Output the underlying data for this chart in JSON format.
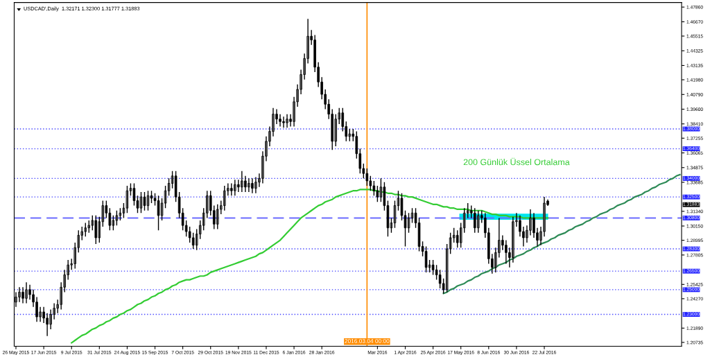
{
  "chart_data": {
    "type": "candlestick",
    "title": "USDCAD',Daily  1.32171 1.32300 1.31777 1.31883",
    "categories": [
      "26 May 2015",
      null,
      null,
      null,
      null,
      null,
      null,
      null,
      "17 Jun 2015",
      null,
      null,
      null,
      null,
      null,
      null,
      null,
      "9 Jul 2015",
      null,
      null,
      null,
      null,
      null,
      null,
      null,
      "31 Jul 2015",
      null,
      null,
      null,
      null,
      null,
      null,
      null,
      "24 Aug 2015",
      null,
      null,
      null,
      null,
      null,
      null,
      null,
      "15 Sep 2015",
      null,
      null,
      null,
      null,
      null,
      null,
      null,
      "7 Oct 2015",
      null,
      null,
      null,
      null,
      null,
      null,
      null,
      "29 Oct 2015",
      null,
      null,
      null,
      null,
      null,
      null,
      null,
      "19 Nov 2015",
      null,
      null,
      null,
      null,
      null,
      null,
      null,
      "11 Dec 2015",
      null,
      null,
      null,
      null,
      null,
      null,
      null,
      "6 Jan 2016",
      null,
      null,
      null,
      null,
      null,
      null,
      null,
      "28 Jan 2016",
      null,
      null,
      null,
      null,
      null,
      null,
      null,
      null,
      null,
      null,
      null,
      null,
      "2016.03.04 00:00",
      null,
      null,
      "Mar 2016",
      null,
      null,
      null,
      null,
      null,
      null,
      null,
      "1 Apr 2016",
      null,
      null,
      null,
      null,
      null,
      null,
      null,
      "25 Apr 2016",
      null,
      null,
      null,
      null,
      null,
      null,
      null,
      "17 May 2016",
      null,
      null,
      null,
      null,
      null,
      null,
      null,
      "8 Jun 2016",
      null,
      null,
      null,
      null,
      null,
      null,
      null,
      "30 Jun 2016",
      null,
      null,
      null,
      null,
      null,
      null,
      null,
      "22 Jul 2016",
      null,
      null,
      null,
      null,
      null,
      null,
      null,
      null,
      null,
      null,
      null,
      null,
      null,
      null,
      null,
      null,
      null,
      null,
      null,
      null,
      null,
      null,
      null,
      null,
      null,
      null,
      null,
      null,
      null,
      null,
      null,
      null,
      null,
      null,
      null,
      null,
      null,
      null,
      null
    ],
    "ohlc": [
      [
        1.24,
        1.248,
        1.236,
        1.244
      ],
      [
        1.244,
        1.252,
        1.24,
        1.248
      ],
      [
        1.248,
        1.252,
        1.239,
        1.243
      ],
      [
        1.243,
        1.256,
        1.239,
        1.25
      ],
      [
        1.25,
        1.254,
        1.242,
        1.246
      ],
      [
        1.246,
        1.25,
        1.236,
        1.24
      ],
      [
        1.24,
        1.244,
        1.224,
        1.228
      ],
      [
        1.228,
        1.236,
        1.224,
        1.232
      ],
      [
        1.232,
        1.236,
        1.223,
        1.227
      ],
      [
        1.227,
        1.231,
        1.2125,
        1.222
      ],
      [
        1.222,
        1.234,
        1.218,
        1.23
      ],
      [
        1.23,
        1.239,
        1.226,
        1.235
      ],
      [
        1.235,
        1.242,
        1.231,
        1.238
      ],
      [
        1.238,
        1.256,
        1.234,
        1.252
      ],
      [
        1.252,
        1.266,
        1.248,
        1.262
      ],
      [
        1.262,
        1.274,
        1.258,
        1.27
      ],
      [
        1.27,
        1.275,
        1.266,
        1.271
      ],
      [
        1.271,
        1.288,
        1.267,
        1.284
      ],
      [
        1.284,
        1.298,
        1.28,
        1.294
      ],
      [
        1.294,
        1.301,
        1.29,
        1.297
      ],
      [
        1.297,
        1.304,
        1.293,
        1.3
      ],
      [
        1.3,
        1.306,
        1.296,
        1.302
      ],
      [
        1.302,
        1.31,
        1.298,
        1.306
      ],
      [
        1.306,
        1.31,
        1.287,
        1.292
      ],
      [
        1.292,
        1.309,
        1.288,
        1.305
      ],
      [
        1.305,
        1.322,
        1.301,
        1.318
      ],
      [
        1.318,
        1.322,
        1.308,
        1.312
      ],
      [
        1.312,
        1.316,
        1.298,
        1.302
      ],
      [
        1.302,
        1.31,
        1.298,
        1.306
      ],
      [
        1.306,
        1.314,
        1.302,
        1.31
      ],
      [
        1.31,
        1.316,
        1.306,
        1.312
      ],
      [
        1.312,
        1.32,
        1.308,
        1.316
      ],
      [
        1.316,
        1.334,
        1.312,
        1.33
      ],
      [
        1.33,
        1.336,
        1.326,
        1.332
      ],
      [
        1.332,
        1.336,
        1.318,
        1.322
      ],
      [
        1.322,
        1.326,
        1.312,
        1.316
      ],
      [
        1.316,
        1.329,
        1.312,
        1.325
      ],
      [
        1.325,
        1.329,
        1.314,
        1.318
      ],
      [
        1.318,
        1.33,
        1.314,
        1.326
      ],
      [
        1.326,
        1.33,
        1.32,
        1.324
      ],
      [
        1.324,
        1.328,
        1.318,
        1.322
      ],
      [
        1.322,
        1.326,
        1.298,
        1.31
      ],
      [
        1.31,
        1.324,
        1.306,
        1.32
      ],
      [
        1.32,
        1.334,
        1.316,
        1.33
      ],
      [
        1.33,
        1.34,
        1.326,
        1.336
      ],
      [
        1.336,
        1.346,
        1.332,
        1.342
      ],
      [
        1.342,
        1.346,
        1.321,
        1.325
      ],
      [
        1.325,
        1.329,
        1.308,
        1.312
      ],
      [
        1.312,
        1.316,
        1.298,
        1.302
      ],
      [
        1.302,
        1.306,
        1.293,
        1.297
      ],
      [
        1.297,
        1.301,
        1.288,
        1.292
      ],
      [
        1.292,
        1.296,
        1.283,
        1.286
      ],
      [
        1.286,
        1.299,
        1.282,
        1.295
      ],
      [
        1.295,
        1.306,
        1.291,
        1.302
      ],
      [
        1.302,
        1.316,
        1.298,
        1.312
      ],
      [
        1.312,
        1.33,
        1.308,
        1.326
      ],
      [
        1.326,
        1.33,
        1.31,
        1.314
      ],
      [
        1.314,
        1.318,
        1.299,
        1.303
      ],
      [
        1.303,
        1.319,
        1.299,
        1.315
      ],
      [
        1.315,
        1.322,
        1.311,
        1.318
      ],
      [
        1.318,
        1.334,
        1.314,
        1.33
      ],
      [
        1.33,
        1.336,
        1.326,
        1.332
      ],
      [
        1.332,
        1.336,
        1.326,
        1.33
      ],
      [
        1.33,
        1.339,
        1.326,
        1.335
      ],
      [
        1.335,
        1.339,
        1.329,
        1.333
      ],
      [
        1.333,
        1.346,
        1.329,
        1.338
      ],
      [
        1.338,
        1.342,
        1.329,
        1.333
      ],
      [
        1.333,
        1.34,
        1.329,
        1.336
      ],
      [
        1.336,
        1.34,
        1.328,
        1.332
      ],
      [
        1.332,
        1.341,
        1.328,
        1.337
      ],
      [
        1.337,
        1.344,
        1.333,
        1.34
      ],
      [
        1.34,
        1.362,
        1.336,
        1.358
      ],
      [
        1.358,
        1.374,
        1.354,
        1.37
      ],
      [
        1.37,
        1.382,
        1.366,
        1.378
      ],
      [
        1.378,
        1.397,
        1.374,
        1.392
      ],
      [
        1.392,
        1.396,
        1.384,
        1.388
      ],
      [
        1.388,
        1.392,
        1.382,
        1.386
      ],
      [
        1.386,
        1.39,
        1.381,
        1.385
      ],
      [
        1.385,
        1.392,
        1.381,
        1.388
      ],
      [
        1.388,
        1.392,
        1.382,
        1.386
      ],
      [
        1.386,
        1.406,
        1.382,
        1.402
      ],
      [
        1.402,
        1.416,
        1.398,
        1.412
      ],
      [
        1.412,
        1.428,
        1.408,
        1.424
      ],
      [
        1.424,
        1.441,
        1.42,
        1.437
      ],
      [
        1.437,
        1.469,
        1.433,
        1.455
      ],
      [
        1.455,
        1.46,
        1.448,
        1.452
      ],
      [
        1.452,
        1.456,
        1.426,
        1.43
      ],
      [
        1.43,
        1.434,
        1.414,
        1.418
      ],
      [
        1.418,
        1.422,
        1.404,
        1.408
      ],
      [
        1.408,
        1.412,
        1.396,
        1.4
      ],
      [
        1.4,
        1.404,
        1.388,
        1.392
      ],
      [
        1.392,
        1.396,
        1.363,
        1.37
      ],
      [
        1.37,
        1.392,
        1.366,
        1.388
      ],
      [
        1.388,
        1.397,
        1.384,
        1.393
      ],
      [
        1.393,
        1.397,
        1.378,
        1.382
      ],
      [
        1.382,
        1.386,
        1.37,
        1.374
      ],
      [
        1.374,
        1.38,
        1.37,
        1.376
      ],
      [
        1.376,
        1.38,
        1.37,
        1.374
      ],
      [
        1.374,
        1.378,
        1.356,
        1.36
      ],
      [
        1.36,
        1.364,
        1.344,
        1.348
      ],
      [
        1.348,
        1.352,
        1.34,
        1.344
      ],
      [
        1.344,
        1.348,
        1.334,
        1.338
      ],
      [
        1.338,
        1.342,
        1.33,
        1.334
      ],
      [
        1.334,
        1.338,
        1.326,
        1.33
      ],
      [
        1.33,
        1.334,
        1.321,
        1.325
      ],
      [
        1.325,
        1.34,
        1.321,
        1.333
      ],
      [
        1.333,
        1.337,
        1.314,
        1.318
      ],
      [
        1.318,
        1.322,
        1.293,
        1.3
      ],
      [
        1.3,
        1.308,
        1.296,
        1.304
      ],
      [
        1.304,
        1.322,
        1.3,
        1.318
      ],
      [
        1.318,
        1.33,
        1.314,
        1.324
      ],
      [
        1.324,
        1.328,
        1.306,
        1.31
      ],
      [
        1.31,
        1.314,
        1.285,
        1.3
      ],
      [
        1.3,
        1.312,
        1.296,
        1.308
      ],
      [
        1.308,
        1.316,
        1.304,
        1.312
      ],
      [
        1.312,
        1.316,
        1.3,
        1.304
      ],
      [
        1.304,
        1.308,
        1.281,
        1.285
      ],
      [
        1.285,
        1.289,
        1.277,
        1.281
      ],
      [
        1.281,
        1.285,
        1.264,
        1.268
      ],
      [
        1.268,
        1.274,
        1.264,
        1.27
      ],
      [
        1.27,
        1.274,
        1.262,
        1.266
      ],
      [
        1.266,
        1.27,
        1.258,
        1.262
      ],
      [
        1.262,
        1.266,
        1.251,
        1.255
      ],
      [
        1.255,
        1.259,
        1.2468,
        1.25
      ],
      [
        1.25,
        1.287,
        1.248,
        1.283
      ],
      [
        1.283,
        1.296,
        1.279,
        1.292
      ],
      [
        1.292,
        1.3,
        1.288,
        1.294
      ],
      [
        1.294,
        1.298,
        1.284,
        1.288
      ],
      [
        1.288,
        1.304,
        1.284,
        1.3
      ],
      [
        1.3,
        1.316,
        1.296,
        1.312
      ],
      [
        1.312,
        1.32,
        1.308,
        1.314
      ],
      [
        1.314,
        1.318,
        1.308,
        1.312
      ],
      [
        1.312,
        1.316,
        1.296,
        1.3
      ],
      [
        1.3,
        1.314,
        1.296,
        1.31
      ],
      [
        1.31,
        1.314,
        1.304,
        1.308
      ],
      [
        1.308,
        1.312,
        1.292,
        1.296
      ],
      [
        1.296,
        1.3,
        1.271,
        1.275
      ],
      [
        1.275,
        1.279,
        1.263,
        1.268
      ],
      [
        1.268,
        1.284,
        1.264,
        1.28
      ],
      [
        1.28,
        1.308,
        1.276,
        1.29
      ],
      [
        1.29,
        1.294,
        1.282,
        1.286
      ],
      [
        1.286,
        1.29,
        1.271,
        1.28
      ],
      [
        1.28,
        1.284,
        1.268,
        1.276
      ],
      [
        1.276,
        1.309,
        1.272,
        1.305
      ],
      [
        1.305,
        1.312,
        1.301,
        1.306
      ],
      [
        1.306,
        1.31,
        1.293,
        1.297
      ],
      [
        1.297,
        1.301,
        1.285,
        1.292
      ],
      [
        1.292,
        1.302,
        1.288,
        1.298
      ],
      [
        1.298,
        1.315,
        1.294,
        1.308
      ],
      [
        1.308,
        1.312,
        1.292,
        1.296
      ],
      [
        1.296,
        1.3,
        1.285,
        1.29
      ],
      [
        1.29,
        1.301,
        1.286,
        1.297
      ],
      [
        1.297,
        1.325,
        1.293,
        1.32
      ],
      [
        1.3217,
        1.323,
        1.3178,
        1.3188
      ],
      null,
      null,
      null,
      null,
      null,
      null,
      null,
      null,
      null,
      null,
      null,
      null,
      null,
      null,
      null,
      null,
      null,
      null,
      null,
      null,
      null,
      null,
      null,
      null,
      null,
      null,
      null,
      null,
      null,
      null,
      null,
      null,
      null,
      null,
      null,
      null,
      null,
      null
    ],
    "series": [
      {
        "name": "200 Günlük Üssel Ortalama",
        "type": "line",
        "color": "#33cc33",
        "values": [
          null,
          null,
          null,
          null,
          null,
          null,
          null,
          null,
          null,
          null,
          null,
          null,
          null,
          null,
          null,
          null,
          1.207,
          1.209,
          1.211,
          1.213,
          1.214,
          1.216,
          1.218,
          1.219,
          1.221,
          1.222,
          1.224,
          1.225,
          1.227,
          1.228,
          1.23,
          1.231,
          1.233,
          1.234,
          1.236,
          1.238,
          1.239,
          1.241,
          1.242,
          1.244,
          1.245,
          1.247,
          1.248,
          1.25,
          1.251,
          1.253,
          1.254,
          1.256,
          1.257,
          1.258,
          1.258,
          1.259,
          1.26,
          1.261,
          1.261,
          1.262,
          1.264,
          1.265,
          1.266,
          1.267,
          1.268,
          1.269,
          1.27,
          1.271,
          1.272,
          1.273,
          1.274,
          1.275,
          1.276,
          1.277,
          1.279,
          1.28,
          1.282,
          1.284,
          1.286,
          1.288,
          1.29,
          1.293,
          1.296,
          1.299,
          1.302,
          1.305,
          1.308,
          1.31,
          1.312,
          1.314,
          1.316,
          1.318,
          1.319,
          1.321,
          1.322,
          1.323,
          1.325,
          1.326,
          1.327,
          1.328,
          1.329,
          1.33,
          1.33,
          1.331,
          1.331,
          1.331,
          1.331,
          1.33,
          1.33,
          1.329,
          1.329,
          1.328,
          1.328,
          1.327,
          1.327,
          1.326,
          1.326,
          1.325,
          1.325,
          1.324,
          1.323,
          1.322,
          1.321,
          1.32,
          1.319,
          1.319,
          1.318,
          1.317,
          1.317,
          1.316,
          1.316,
          1.315,
          1.315,
          1.315,
          1.315,
          1.314,
          1.314,
          1.314,
          1.314,
          1.313,
          1.312,
          1.311,
          1.311,
          1.31,
          1.31,
          1.31,
          1.309,
          1.309,
          1.309,
          1.309,
          1.308,
          1.308,
          1.308,
          1.308,
          1.308,
          1.308,
          1.308,
          1.308,
          null,
          null,
          null,
          null,
          null,
          null,
          null,
          null,
          null,
          null,
          null,
          null,
          null,
          null,
          null,
          null,
          null,
          null,
          null,
          null,
          null,
          null,
          null,
          null,
          null,
          null,
          null,
          null,
          null,
          null,
          null,
          null,
          null,
          null,
          null,
          null,
          null,
          null
        ]
      },
      {
        "type": "line",
        "color": "#2e8b57",
        "values": [
          null,
          null,
          null,
          null,
          null,
          null,
          null,
          null,
          null,
          null,
          null,
          null,
          null,
          null,
          null,
          null,
          null,
          null,
          null,
          null,
          null,
          null,
          null,
          null,
          null,
          null,
          null,
          null,
          null,
          null,
          null,
          null,
          null,
          null,
          null,
          null,
          null,
          null,
          null,
          null,
          null,
          null,
          null,
          null,
          null,
          null,
          null,
          null,
          null,
          null,
          null,
          null,
          null,
          null,
          null,
          null,
          null,
          null,
          null,
          null,
          null,
          null,
          null,
          null,
          null,
          null,
          null,
          null,
          null,
          null,
          null,
          null,
          null,
          null,
          null,
          null,
          null,
          null,
          null,
          null,
          null,
          null,
          null,
          null,
          null,
          null,
          null,
          null,
          null,
          null,
          null,
          null,
          null,
          null,
          null,
          null,
          null,
          null,
          null,
          null,
          null,
          null,
          null,
          null,
          null,
          null,
          null,
          null,
          null,
          null,
          null,
          null,
          null,
          null,
          null,
          null,
          null,
          null,
          null,
          null,
          null,
          null,
          null,
          1.247,
          1.248,
          1.25,
          1.251,
          1.253,
          1.254,
          1.255,
          1.257,
          1.258,
          1.26,
          1.261,
          1.263,
          1.264,
          1.265,
          1.267,
          1.268,
          1.27,
          1.271,
          1.272,
          1.274,
          1.275,
          1.277,
          1.278,
          1.279,
          1.281,
          1.282,
          1.284,
          1.285,
          1.287,
          1.288,
          1.289,
          1.291,
          1.292,
          1.294,
          1.295,
          1.296,
          1.298,
          1.299,
          1.301,
          1.302,
          1.303,
          1.305,
          1.306,
          1.308,
          1.309,
          1.311,
          1.312,
          1.313,
          1.315,
          1.316,
          1.318,
          1.319,
          1.32,
          1.322,
          1.323,
          1.325,
          1.326,
          1.327,
          1.329,
          1.33,
          1.332,
          1.333,
          1.335,
          1.336,
          1.337,
          1.339,
          1.34,
          1.342,
          1.343
        ]
      }
    ],
    "ylim": [
      1.2042,
      1.4823
    ],
    "yticks": [
      {
        "value": 1.4786,
        "label": "1.47860"
      },
      {
        "value": 1.4667,
        "label": "1.46670"
      },
      {
        "value": 1.45515,
        "label": "1.45515"
      },
      {
        "value": 1.44325,
        "label": "1.44325"
      },
      {
        "value": 1.43135,
        "label": "1.43135"
      },
      {
        "value": 1.4198,
        "label": "1.41980"
      },
      {
        "value": 1.4079,
        "label": "1.40790"
      },
      {
        "value": 1.396,
        "label": "1.39600"
      },
      {
        "value": 1.3841,
        "label": "1.38410"
      },
      {
        "value": 1.37255,
        "label": "1.37255"
      },
      {
        "value": 1.36065,
        "label": "1.36065"
      },
      {
        "value": 1.34875,
        "label": "1.34875"
      },
      {
        "value": 1.33685,
        "label": "1.33685"
      },
      {
        "value": 1.3134,
        "label": "1.31340"
      },
      {
        "value": 1.3015,
        "label": "1.30150"
      },
      {
        "value": 1.28995,
        "label": "1.28995"
      },
      {
        "value": 1.27805,
        "label": "1.27805"
      },
      {
        "value": 1.25425,
        "label": "1.25425"
      },
      {
        "value": 1.2427,
        "label": "1.24270"
      },
      {
        "value": 1.2189,
        "label": "1.21890"
      },
      {
        "value": 1.20735,
        "label": "1.20735"
      }
    ],
    "ref_lines": [
      {
        "axis": "y",
        "value": 1.38,
        "label": "1.38000",
        "color": "#4040ff",
        "line_style": "dotted"
      },
      {
        "axis": "y",
        "value": 1.364,
        "label": "1.36400",
        "color": "#4040ff",
        "line_style": "dotted"
      },
      {
        "axis": "y",
        "value": 1.34,
        "label": "1.34000",
        "color": "#4040ff",
        "line_style": "dotted"
      },
      {
        "axis": "y",
        "value": 1.325,
        "label": "1.32500",
        "color": "#4040ff",
        "line_style": "dotted"
      },
      {
        "axis": "y",
        "value": 1.308,
        "label": "1.30800",
        "color": "#6b6bff",
        "line_style": "dashed"
      },
      {
        "axis": "y",
        "value": 1.283,
        "label": "1.28300",
        "color": "#4040ff",
        "line_style": "dotted"
      },
      {
        "axis": "y",
        "value": 1.265,
        "label": "1.26500",
        "color": "#4040ff",
        "line_style": "dotted"
      },
      {
        "axis": "y",
        "value": 1.25,
        "label": "1.25000",
        "color": "#4040ff",
        "line_style": "dotted"
      },
      {
        "axis": "y",
        "value": 1.23,
        "label": "1.23000",
        "color": "#4040ff",
        "line_style": "dotted"
      },
      {
        "axis": "x",
        "value": "2016.03.04 00:00",
        "color": "#ff8c00",
        "line_style": "solid"
      }
    ],
    "bands": [
      {
        "axis": "y",
        "from": 1.3065,
        "to": 1.3115,
        "color": "#00e5ee"
      }
    ],
    "annotations": [
      "1.31883"
    ],
    "grid": false,
    "legend": false,
    "marker": "none"
  }
}
